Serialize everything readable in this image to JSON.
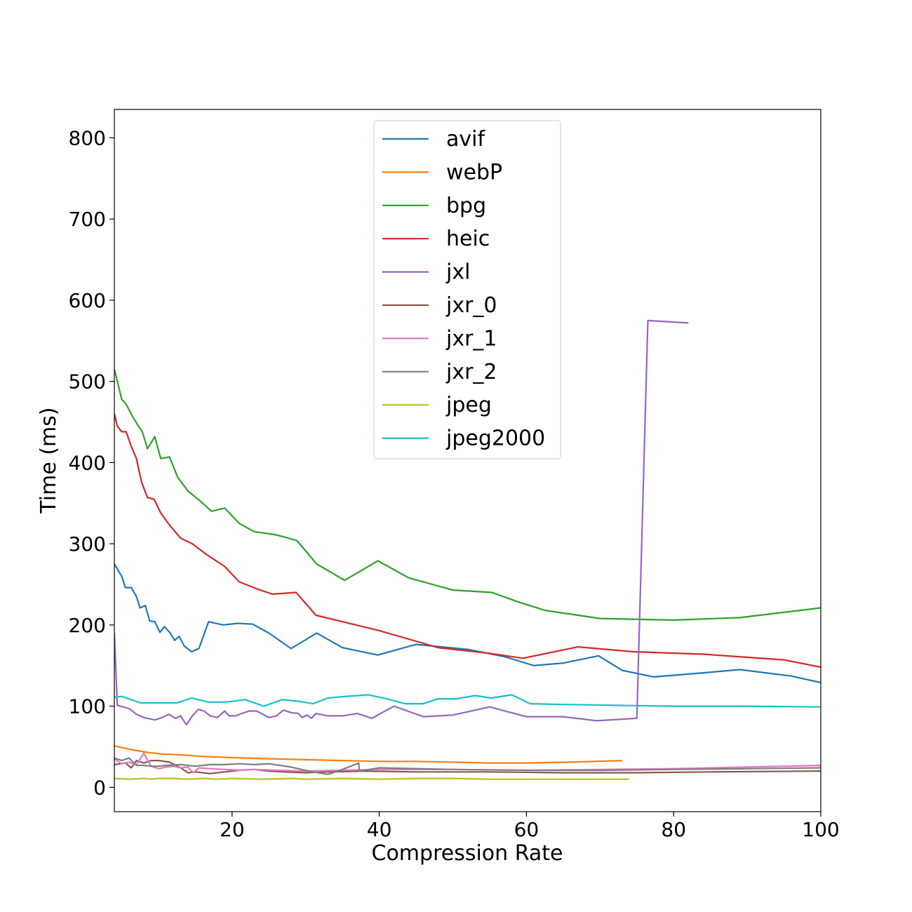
{
  "chart_data": {
    "type": "line",
    "title": "",
    "xlabel": "Compression Rate",
    "ylabel": "Time (ms)",
    "xlim": [
      4,
      100
    ],
    "ylim": [
      -30,
      835
    ],
    "xticks": [
      20,
      40,
      60,
      80,
      100
    ],
    "yticks": [
      0,
      100,
      200,
      300,
      400,
      500,
      600,
      700,
      800
    ],
    "grid": false,
    "legend_position": "upper center",
    "series": [
      {
        "name": "avif",
        "color": "#1f77b4",
        "points": [
          [
            4,
            275
          ],
          [
            5,
            260
          ],
          [
            5.5,
            246
          ],
          [
            6.3,
            246
          ],
          [
            7,
            235
          ],
          [
            7.5,
            221
          ],
          [
            8.2,
            224
          ],
          [
            8.8,
            205
          ],
          [
            9.5,
            204
          ],
          [
            10.2,
            191
          ],
          [
            10.8,
            198
          ],
          [
            11.6,
            190
          ],
          [
            12.2,
            181
          ],
          [
            12.8,
            186
          ],
          [
            13.5,
            174
          ],
          [
            14.5,
            167
          ],
          [
            15.5,
            171
          ],
          [
            16.8,
            204
          ],
          [
            18.8,
            200
          ],
          [
            20.8,
            202
          ],
          [
            22.8,
            201
          ],
          [
            25,
            190
          ],
          [
            28,
            171
          ],
          [
            31.5,
            190
          ],
          [
            35,
            172
          ],
          [
            39.8,
            163
          ],
          [
            45,
            176
          ],
          [
            52,
            170
          ],
          [
            57,
            161
          ],
          [
            61,
            150
          ],
          [
            65,
            153
          ],
          [
            69.8,
            162
          ],
          [
            73,
            144
          ],
          [
            77.3,
            136
          ],
          [
            84,
            141
          ],
          [
            89,
            145
          ],
          [
            96,
            137
          ],
          [
            100,
            129
          ]
        ]
      },
      {
        "name": "webP",
        "color": "#ff7f0e",
        "points": [
          [
            4,
            51
          ],
          [
            6,
            47
          ],
          [
            8.5,
            43
          ],
          [
            10.5,
            41
          ],
          [
            13,
            40
          ],
          [
            16,
            38
          ],
          [
            19,
            37
          ],
          [
            22,
            36
          ],
          [
            26,
            35
          ],
          [
            30,
            34
          ],
          [
            35,
            33
          ],
          [
            40,
            32
          ],
          [
            45,
            32
          ],
          [
            50,
            31
          ],
          [
            55,
            30
          ],
          [
            60,
            30
          ],
          [
            66,
            31
          ],
          [
            73,
            33
          ]
        ]
      },
      {
        "name": "bpg",
        "color": "#2ca02c",
        "points": [
          [
            4,
            515
          ],
          [
            5,
            478
          ],
          [
            5.6,
            472
          ],
          [
            6.4,
            458
          ],
          [
            7.2,
            446
          ],
          [
            7.8,
            438
          ],
          [
            8.5,
            417
          ],
          [
            9.5,
            432
          ],
          [
            10.3,
            405
          ],
          [
            11.5,
            407
          ],
          [
            12.6,
            382
          ],
          [
            14,
            365
          ],
          [
            15.5,
            354
          ],
          [
            17.2,
            340
          ],
          [
            19,
            344
          ],
          [
            21,
            325
          ],
          [
            23,
            315
          ],
          [
            26,
            311
          ],
          [
            28.8,
            304
          ],
          [
            31.5,
            275
          ],
          [
            35.3,
            255
          ],
          [
            39.8,
            279
          ],
          [
            44,
            258
          ],
          [
            50,
            243
          ],
          [
            55.3,
            240
          ],
          [
            58.7,
            229
          ],
          [
            62.5,
            218
          ],
          [
            70,
            208
          ],
          [
            80,
            206
          ],
          [
            89,
            209
          ],
          [
            100,
            221
          ]
        ]
      },
      {
        "name": "heic",
        "color": "#d62728",
        "points": [
          [
            4,
            460
          ],
          [
            4.4,
            445
          ],
          [
            5,
            438
          ],
          [
            5.6,
            438
          ],
          [
            6.3,
            420
          ],
          [
            7,
            405
          ],
          [
            7.7,
            376
          ],
          [
            8.5,
            357
          ],
          [
            9.4,
            355
          ],
          [
            10.3,
            338
          ],
          [
            11.5,
            323
          ],
          [
            13,
            307
          ],
          [
            14.6,
            300
          ],
          [
            16.5,
            287
          ],
          [
            19,
            272
          ],
          [
            21,
            253
          ],
          [
            23.5,
            244
          ],
          [
            25.5,
            238
          ],
          [
            28.7,
            240
          ],
          [
            31.4,
            212
          ],
          [
            40,
            193
          ],
          [
            45,
            180
          ],
          [
            48,
            172
          ],
          [
            55,
            165
          ],
          [
            59.5,
            159
          ],
          [
            67,
            173
          ],
          [
            74.5,
            167
          ],
          [
            84,
            164
          ],
          [
            95,
            157
          ],
          [
            100,
            148
          ]
        ]
      },
      {
        "name": "jxl",
        "color": "#9467bd",
        "points": [
          [
            4,
            190
          ],
          [
            4.4,
            101
          ],
          [
            6,
            97
          ],
          [
            7,
            90
          ],
          [
            8,
            86
          ],
          [
            9.5,
            83
          ],
          [
            10.5,
            86
          ],
          [
            11.4,
            90
          ],
          [
            12.3,
            85
          ],
          [
            13,
            88
          ],
          [
            13.8,
            77
          ],
          [
            14.6,
            88
          ],
          [
            15.4,
            96
          ],
          [
            16.2,
            94
          ],
          [
            17,
            88
          ],
          [
            18,
            86
          ],
          [
            19,
            94
          ],
          [
            19.6,
            88
          ],
          [
            20.5,
            88
          ],
          [
            21.3,
            91
          ],
          [
            22.3,
            94
          ],
          [
            23.3,
            94
          ],
          [
            24,
            91
          ],
          [
            25,
            86
          ],
          [
            26,
            88
          ],
          [
            27,
            95
          ],
          [
            28,
            92
          ],
          [
            29,
            91
          ],
          [
            29.5,
            86
          ],
          [
            30.2,
            89
          ],
          [
            30.8,
            85
          ],
          [
            31.4,
            91
          ],
          [
            33,
            88
          ],
          [
            35,
            88
          ],
          [
            37,
            91
          ],
          [
            39,
            85
          ],
          [
            42,
            100
          ],
          [
            46,
            87
          ],
          [
            50,
            89
          ],
          [
            55,
            99
          ],
          [
            60,
            87
          ],
          [
            65,
            87
          ],
          [
            69.5,
            82
          ],
          [
            75,
            85
          ],
          [
            76.5,
            575
          ],
          [
            82,
            572
          ]
        ]
      },
      {
        "name": "jxr_0",
        "color": "#8c564b",
        "points": [
          [
            4,
            28
          ],
          [
            5.5,
            30
          ],
          [
            6.3,
            24
          ],
          [
            7,
            33
          ],
          [
            8,
            30
          ],
          [
            9,
            33
          ],
          [
            10,
            33
          ],
          [
            11.5,
            31
          ],
          [
            13,
            24
          ],
          [
            14,
            18
          ],
          [
            15,
            19
          ],
          [
            17,
            17
          ],
          [
            19,
            19
          ],
          [
            21,
            21
          ],
          [
            23,
            22
          ],
          [
            25,
            20
          ],
          [
            27,
            19
          ],
          [
            30,
            18
          ],
          [
            33,
            19
          ],
          [
            38,
            20
          ],
          [
            45,
            19
          ],
          [
            55,
            19
          ],
          [
            65,
            18
          ],
          [
            75,
            18
          ],
          [
            85,
            19
          ],
          [
            100,
            20
          ]
        ]
      },
      {
        "name": "jxr_1",
        "color": "#e377c2",
        "points": [
          [
            4,
            35
          ],
          [
            5,
            29
          ],
          [
            6,
            31
          ],
          [
            7,
            28
          ],
          [
            8,
            42
          ],
          [
            9,
            26
          ],
          [
            10,
            23
          ],
          [
            11,
            25
          ],
          [
            12,
            26
          ],
          [
            13,
            24
          ],
          [
            14,
            25
          ],
          [
            14.7,
            18
          ],
          [
            15.5,
            24
          ],
          [
            17,
            23
          ],
          [
            19,
            22
          ],
          [
            21,
            21
          ],
          [
            23,
            22
          ],
          [
            26,
            21
          ],
          [
            30,
            20
          ],
          [
            35,
            21
          ],
          [
            40,
            22
          ],
          [
            50,
            22
          ],
          [
            60,
            21
          ],
          [
            70,
            22
          ],
          [
            80,
            23
          ],
          [
            90,
            25
          ],
          [
            100,
            27
          ]
        ]
      },
      {
        "name": "jxr_2",
        "color": "#7f7f7f",
        "points": [
          [
            4,
            36
          ],
          [
            5,
            33
          ],
          [
            6,
            36
          ],
          [
            7,
            27
          ],
          [
            8,
            27
          ],
          [
            9,
            26
          ],
          [
            10,
            26
          ],
          [
            11,
            27
          ],
          [
            13,
            28
          ],
          [
            15,
            26
          ],
          [
            17,
            28
          ],
          [
            19,
            28
          ],
          [
            21,
            29
          ],
          [
            23,
            28
          ],
          [
            25,
            29
          ],
          [
            28,
            25
          ],
          [
            31,
            19
          ],
          [
            33,
            16
          ],
          [
            35,
            22
          ],
          [
            37.2,
            30
          ],
          [
            37.3,
            20
          ],
          [
            40,
            24
          ],
          [
            50,
            22
          ],
          [
            60,
            21
          ],
          [
            70,
            21
          ],
          [
            80,
            22
          ],
          [
            90,
            23
          ],
          [
            100,
            24
          ]
        ]
      },
      {
        "name": "jpeg",
        "color": "#bcbd22",
        "points": [
          [
            4,
            11
          ],
          [
            6,
            10
          ],
          [
            8,
            11
          ],
          [
            9,
            10
          ],
          [
            10,
            11
          ],
          [
            12,
            11
          ],
          [
            14,
            10
          ],
          [
            16,
            11
          ],
          [
            18,
            10
          ],
          [
            20,
            11
          ],
          [
            24,
            10
          ],
          [
            28,
            11
          ],
          [
            30,
            10
          ],
          [
            35,
            11
          ],
          [
            40,
            10
          ],
          [
            45,
            11
          ],
          [
            50,
            11
          ],
          [
            55,
            10
          ],
          [
            60,
            10
          ],
          [
            65,
            10
          ],
          [
            70,
            10
          ],
          [
            74,
            10
          ]
        ]
      },
      {
        "name": "jpeg2000",
        "color": "#17becf",
        "points": [
          [
            4,
            111
          ],
          [
            5,
            112
          ],
          [
            6,
            109
          ],
          [
            7.5,
            104
          ],
          [
            9,
            104
          ],
          [
            11,
            104
          ],
          [
            12.5,
            104
          ],
          [
            14.5,
            110
          ],
          [
            16.8,
            105
          ],
          [
            19.2,
            105
          ],
          [
            21.8,
            108
          ],
          [
            24.3,
            100
          ],
          [
            26.8,
            108
          ],
          [
            29,
            106
          ],
          [
            31,
            103
          ],
          [
            33,
            110
          ],
          [
            35.5,
            112
          ],
          [
            38.5,
            114
          ],
          [
            41,
            109
          ],
          [
            43.5,
            103
          ],
          [
            46,
            103
          ],
          [
            48,
            109
          ],
          [
            50.5,
            109
          ],
          [
            53,
            113
          ],
          [
            55.2,
            110
          ],
          [
            58,
            114
          ],
          [
            60.5,
            103
          ],
          [
            65,
            102
          ],
          [
            72,
            101
          ],
          [
            80,
            100
          ],
          [
            90,
            100
          ],
          [
            100,
            99
          ]
        ]
      }
    ]
  }
}
